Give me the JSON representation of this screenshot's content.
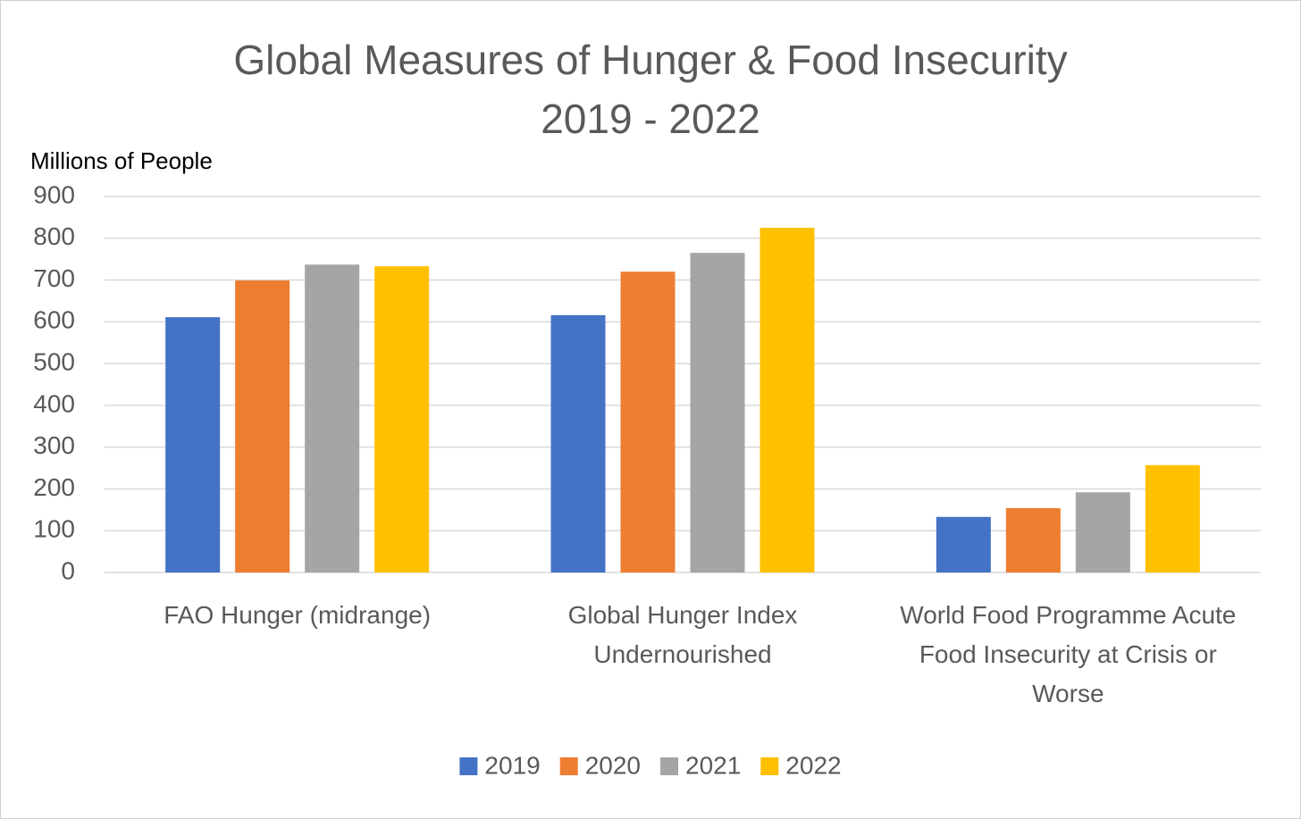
{
  "chart_data": {
    "type": "bar",
    "title": "Global Measures of Hunger & Food Insecurity",
    "subtitle": "2019 - 2022",
    "y_label": "Millions of People",
    "categories": [
      "FAO Hunger (midrange)",
      "Global Hunger Index Undernourished",
      "World Food Programme Acute Food Insecurity at Crisis or Worse"
    ],
    "series": [
      {
        "name": "2019",
        "color": "#4472c4",
        "values": [
          611,
          616,
          133
        ]
      },
      {
        "name": "2020",
        "color": "#ed7d31",
        "values": [
          699,
          720,
          154
        ]
      },
      {
        "name": "2021",
        "color": "#a5a5a5",
        "values": [
          737,
          765,
          192
        ]
      },
      {
        "name": "2022",
        "color": "#ffc000",
        "values": [
          733,
          825,
          257
        ]
      }
    ],
    "ylim": [
      0,
      900
    ],
    "yticks": [
      0,
      100,
      200,
      300,
      400,
      500,
      600,
      700,
      800,
      900
    ],
    "grid": true,
    "legend": "bottom"
  }
}
